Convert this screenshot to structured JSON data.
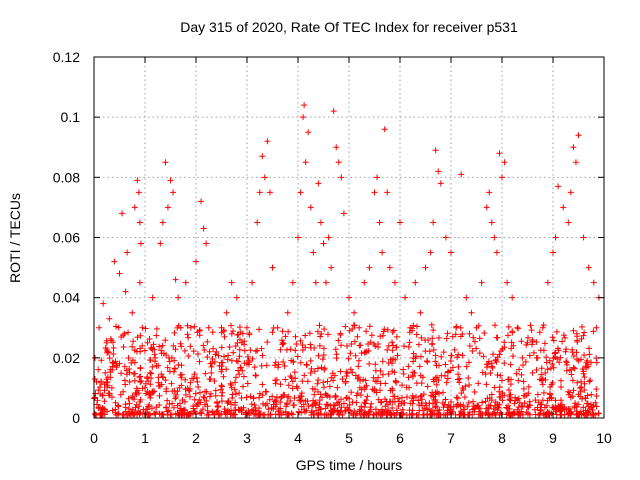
{
  "chart_data": {
    "type": "scatter",
    "title": "Day 315 of 2020, Rate Of TEC Index for receiver p531",
    "xlabel": "GPS time / hours",
    "ylabel": "ROTI / TECUs",
    "xlim": [
      0,
      10
    ],
    "ylim": [
      0,
      0.12
    ],
    "x_ticks": [
      0,
      1,
      2,
      3,
      4,
      5,
      6,
      7,
      8,
      9,
      10
    ],
    "x_tick_labels": [
      "0",
      "1",
      "2",
      "3",
      "4",
      "5",
      "6",
      "7",
      "8",
      "9",
      "10"
    ],
    "y_ticks": [
      0,
      0.02,
      0.04,
      0.06,
      0.08,
      0.1,
      0.12
    ],
    "y_tick_labels": [
      "0",
      "0.02",
      "0.04",
      "0.06",
      "0.08",
      "0.1",
      "0.12"
    ],
    "grid": true,
    "marker": "+",
    "color": "#ff0000",
    "series": [
      {
        "name": "ROTI",
        "x": [
          0.02,
          0.05,
          0.1,
          0.12,
          0.18,
          0.22,
          0.25,
          0.3,
          0.35,
          0.4,
          0.45,
          0.5,
          0.55,
          0.6,
          0.62,
          0.65,
          0.7,
          0.75,
          0.8,
          0.85,
          0.88,
          0.9,
          0.9,
          0.92,
          0.95,
          1.0,
          1.05,
          1.1,
          1.15,
          1.2,
          1.3,
          1.35,
          1.4,
          1.45,
          1.5,
          1.55,
          1.6,
          1.65,
          1.7,
          1.8,
          1.9,
          2.0,
          2.1,
          2.15,
          2.2,
          2.25,
          2.3,
          2.4,
          2.5,
          2.6,
          2.7,
          2.8,
          2.9,
          3.0,
          3.1,
          3.2,
          3.25,
          3.3,
          3.35,
          3.4,
          3.45,
          3.5,
          3.6,
          3.7,
          3.8,
          3.9,
          4.0,
          4.05,
          4.1,
          4.12,
          4.15,
          4.2,
          4.25,
          4.3,
          4.35,
          4.4,
          4.45,
          4.5,
          4.55,
          4.6,
          4.65,
          4.7,
          4.75,
          4.8,
          4.85,
          4.9,
          5.0,
          5.1,
          5.2,
          5.3,
          5.4,
          5.5,
          5.55,
          5.6,
          5.65,
          5.7,
          5.75,
          5.8,
          5.9,
          6.0,
          6.1,
          6.2,
          6.3,
          6.4,
          6.5,
          6.6,
          6.65,
          6.7,
          6.75,
          6.8,
          6.9,
          7.0,
          7.1,
          7.2,
          7.3,
          7.4,
          7.5,
          7.6,
          7.7,
          7.75,
          7.8,
          7.85,
          7.9,
          7.95,
          8.0,
          8.05,
          8.1,
          8.2,
          8.3,
          8.4,
          8.5,
          8.6,
          8.7,
          8.8,
          8.9,
          9.0,
          9.05,
          9.1,
          9.2,
          9.3,
          9.35,
          9.4,
          9.45,
          9.5,
          9.6,
          9.7,
          9.8,
          9.85,
          9.9
        ],
        "y": [
          0.02,
          0.012,
          0.03,
          0.008,
          0.038,
          0.015,
          0.025,
          0.033,
          0.01,
          0.052,
          0.018,
          0.048,
          0.068,
          0.028,
          0.042,
          0.055,
          0.012,
          0.035,
          0.07,
          0.079,
          0.075,
          0.065,
          0.045,
          0.058,
          0.03,
          0.01,
          0.025,
          0.015,
          0.04,
          0.02,
          0.058,
          0.065,
          0.085,
          0.07,
          0.079,
          0.075,
          0.046,
          0.04,
          0.03,
          0.045,
          0.03,
          0.052,
          0.072,
          0.063,
          0.058,
          0.03,
          0.015,
          0.022,
          0.03,
          0.035,
          0.045,
          0.04,
          0.025,
          0.03,
          0.045,
          0.065,
          0.075,
          0.087,
          0.08,
          0.092,
          0.075,
          0.05,
          0.03,
          0.025,
          0.035,
          0.045,
          0.06,
          0.075,
          0.1,
          0.104,
          0.085,
          0.095,
          0.07,
          0.055,
          0.045,
          0.078,
          0.065,
          0.058,
          0.045,
          0.06,
          0.05,
          0.102,
          0.09,
          0.085,
          0.08,
          0.068,
          0.04,
          0.035,
          0.03,
          0.045,
          0.05,
          0.075,
          0.08,
          0.065,
          0.055,
          0.096,
          0.075,
          0.05,
          0.045,
          0.065,
          0.04,
          0.03,
          0.045,
          0.035,
          0.05,
          0.055,
          0.065,
          0.089,
          0.082,
          0.078,
          0.06,
          0.055,
          0.03,
          0.081,
          0.04,
          0.035,
          0.03,
          0.045,
          0.07,
          0.075,
          0.065,
          0.06,
          0.055,
          0.088,
          0.08,
          0.085,
          0.045,
          0.04,
          0.03,
          0.02,
          0.025,
          0.015,
          0.02,
          0.03,
          0.045,
          0.055,
          0.06,
          0.077,
          0.07,
          0.065,
          0.075,
          0.09,
          0.085,
          0.094,
          0.06,
          0.05,
          0.045,
          0.03,
          0.04
        ]
      }
    ]
  }
}
